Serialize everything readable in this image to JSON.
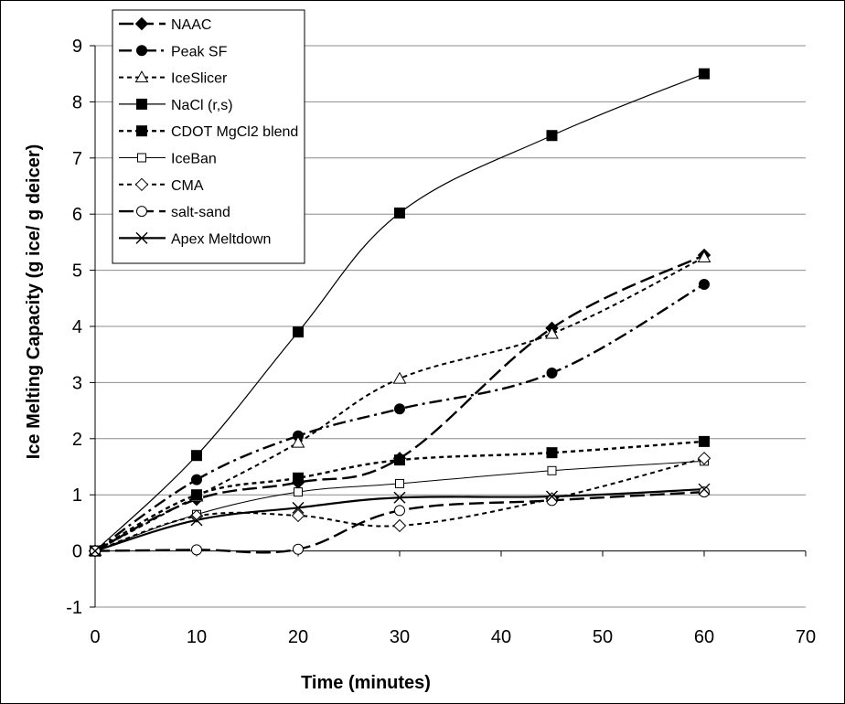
{
  "chart_data": {
    "type": "line",
    "title": "",
    "xlabel": "Time (minutes)",
    "ylabel": "Ice Melting Capacity (g ice/ g deicer)",
    "xlim": [
      0,
      70
    ],
    "ylim": [
      -1,
      9
    ],
    "xticks": [
      0,
      10,
      20,
      30,
      40,
      50,
      60,
      70
    ],
    "yticks": [
      -1,
      0,
      1,
      2,
      3,
      4,
      5,
      6,
      7,
      8,
      9
    ],
    "grid": "horizontal",
    "legend_position": "top-left",
    "x": [
      0,
      10,
      20,
      30,
      45,
      60
    ],
    "series": [
      {
        "name": "NAAC",
        "values": [
          0,
          0.92,
          1.22,
          1.65,
          3.97,
          5.27
        ],
        "marker": "diamond-filled",
        "dash": "long-dash"
      },
      {
        "name": "Peak SF",
        "values": [
          0,
          1.27,
          2.05,
          2.53,
          3.17,
          4.75
        ],
        "marker": "circle-filled",
        "dash": "dash-dot"
      },
      {
        "name": "IceSlicer",
        "values": [
          0,
          0.97,
          1.93,
          3.07,
          3.87,
          5.23
        ],
        "marker": "triangle-open",
        "dash": "short-dash"
      },
      {
        "name": "NaCl (r,s)",
        "values": [
          0,
          1.7,
          3.9,
          6.02,
          7.4,
          8.5
        ],
        "marker": "square-filled",
        "dash": "solid"
      },
      {
        "name": "CDOT MgCl2 blend",
        "values": [
          0,
          1.0,
          1.3,
          1.62,
          1.75,
          1.95
        ],
        "marker": "square-filled",
        "dash": "dotted"
      },
      {
        "name": "IceBan",
        "values": [
          0,
          0.65,
          1.05,
          1.2,
          1.43,
          1.6
        ],
        "marker": "square-open",
        "dash": "solid-thin"
      },
      {
        "name": "CMA",
        "values": [
          0,
          0.62,
          0.63,
          0.45,
          0.93,
          1.65
        ],
        "marker": "diamond-open",
        "dash": "short-dash"
      },
      {
        "name": "salt-sand",
        "values": [
          0,
          0.02,
          0.03,
          0.72,
          0.9,
          1.05
        ],
        "marker": "circle-open",
        "dash": "long-dash"
      },
      {
        "name": "Apex Meltdown",
        "values": [
          0,
          0.55,
          0.77,
          0.95,
          0.97,
          1.1
        ],
        "marker": "x",
        "dash": "solid-thick"
      }
    ]
  }
}
